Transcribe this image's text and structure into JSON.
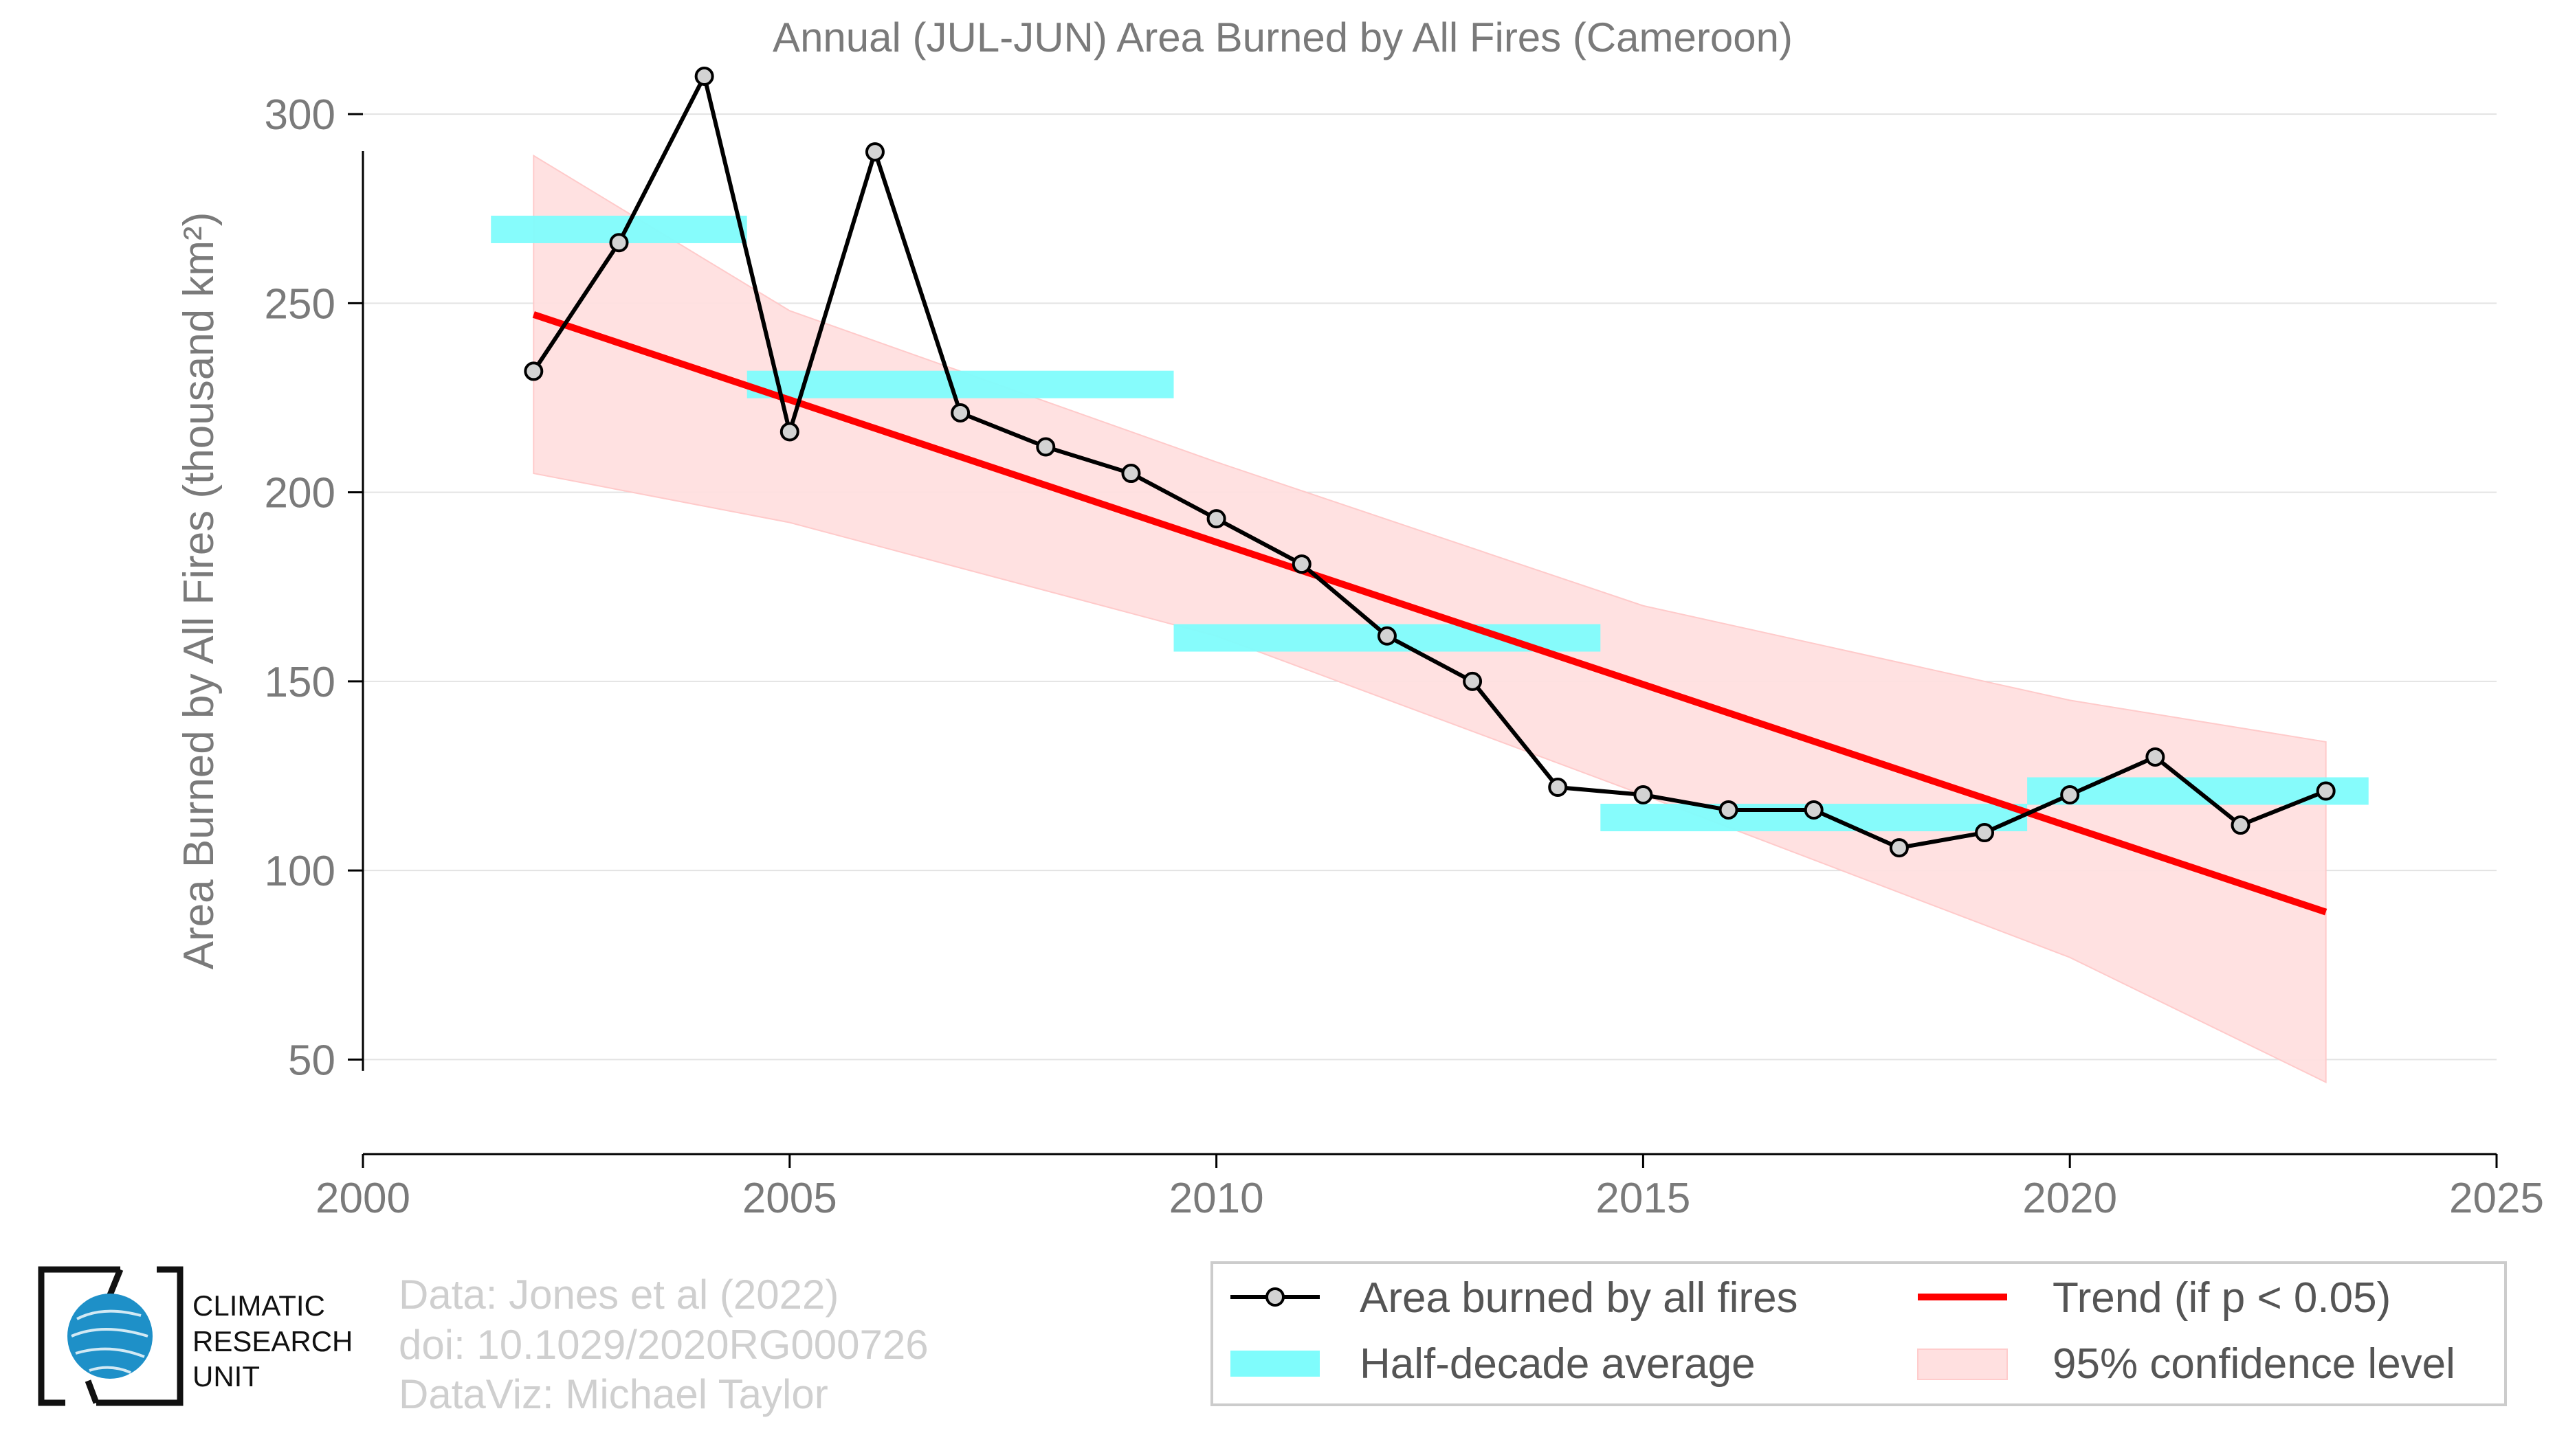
{
  "chart_data": {
    "type": "line",
    "title": "Annual (JUL-JUN) Area Burned by All Fires (Cameroon)",
    "ylabel": "Area Burned by All Fires (thousand km²)",
    "xlim": [
      2000,
      2025
    ],
    "ylim": [
      25,
      312
    ],
    "x_ticks": [
      "2000",
      "2005",
      "2010",
      "2015",
      "2020",
      "2025"
    ],
    "y_ticks": [
      "50",
      "100",
      "150",
      "200",
      "250",
      "300"
    ],
    "grid": "horizontal",
    "legend_position": "bottom-right",
    "series": [
      {
        "name": "Area burned by all fires",
        "color": "#000000",
        "marker": "circle",
        "marker_fill": "#d3d3d3",
        "x": [
          2002,
          2003,
          2004,
          2005,
          2006,
          2007,
          2008,
          2009,
          2010,
          2011,
          2012,
          2013,
          2014,
          2015,
          2016,
          2017,
          2018,
          2019,
          2020,
          2021,
          2022,
          2023
        ],
        "y": [
          232,
          266,
          310,
          216,
          290,
          221,
          212,
          205,
          193,
          181,
          162,
          150,
          122,
          120,
          116,
          116,
          106,
          110,
          120,
          130,
          112,
          121
        ]
      },
      {
        "name": "Half-decade average",
        "color": "#7ffcfc",
        "segments": [
          {
            "x0": 2001.5,
            "x1": 2004.5,
            "y": 269.5
          },
          {
            "x0": 2004.5,
            "x1": 2009.5,
            "y": 228.5
          },
          {
            "x0": 2009.5,
            "x1": 2014.5,
            "y": 161.5
          },
          {
            "x0": 2014.5,
            "x1": 2019.5,
            "y": 114
          },
          {
            "x0": 2019.5,
            "x1": 2023.5,
            "y": 121
          }
        ]
      },
      {
        "name": "Trend (if p < 0.05)",
        "color": "#ff0000",
        "x": [
          2002,
          2023
        ],
        "y": [
          247,
          89
        ]
      },
      {
        "name": "95% confidence level",
        "color": "#ffe0e0",
        "x": [
          2002,
          2005,
          2010,
          2015,
          2020,
          2023
        ],
        "upper": [
          289,
          248,
          208,
          170,
          145,
          134
        ],
        "lower": [
          205,
          192,
          162,
          120,
          77,
          44
        ]
      }
    ]
  },
  "credits": {
    "line1": "Data: Jones et al (2022)",
    "line2": "doi: 10.1029/2020RG000726",
    "line3": "DataViz: Michael Taylor"
  },
  "logo": {
    "line1": "CLIMATIC",
    "line2": "RESEARCH",
    "line3": "UNIT",
    "globe_color": "#1e90c8"
  }
}
